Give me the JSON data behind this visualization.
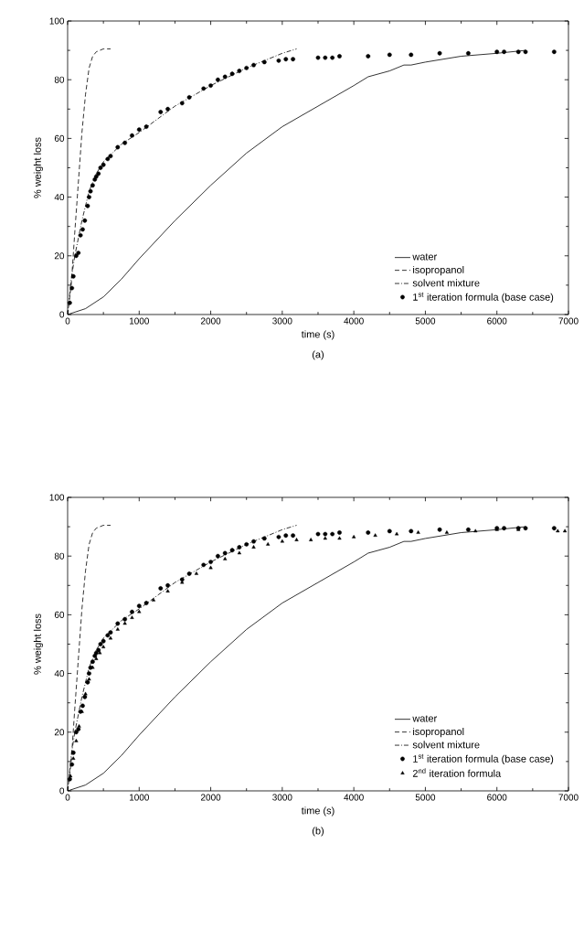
{
  "chart_data": [
    {
      "type": "line",
      "xlabel": "time (s)",
      "ylabel": "% weight loss",
      "annotations": [
        "(a)"
      ],
      "xlim": [
        0,
        7000
      ],
      "ylim": [
        0,
        100
      ],
      "xticks": [
        0,
        1000,
        2000,
        3000,
        4000,
        5000,
        6000,
        7000
      ],
      "yticks": [
        0,
        20,
        40,
        60,
        80,
        100
      ],
      "grid": false,
      "legend": "bottom right",
      "series": [
        {
          "name": "water",
          "line_style": "solid",
          "marker": "none",
          "color": "#000000",
          "x": [
            0,
            250,
            500,
            750,
            1000,
            1500,
            2000,
            2500,
            3000,
            3500,
            4000,
            4200,
            4500,
            4700,
            4800,
            5000,
            5500,
            6000,
            6400
          ],
          "values": [
            0,
            2,
            6,
            12,
            19,
            32,
            44,
            55,
            64,
            71,
            78,
            81,
            83,
            85,
            85,
            86,
            88,
            89,
            90
          ]
        },
        {
          "name": "isopropanol",
          "line_style": "dashed",
          "marker": "none",
          "color": "#000000",
          "x": [
            0,
            50,
            100,
            150,
            200,
            250,
            300,
            350,
            400,
            500,
            600
          ],
          "values": [
            0,
            10,
            28,
            45,
            62,
            75,
            84,
            88,
            89.5,
            90.5,
            90.5
          ]
        },
        {
          "name": "solvent mixture",
          "line_style": "dashdot",
          "marker": "none",
          "color": "#000000",
          "x": [
            0,
            50,
            100,
            200,
            300,
            400,
            500,
            750,
            1000,
            1500,
            2000,
            2500,
            2800,
            3000,
            3200
          ],
          "values": [
            0,
            12,
            20,
            32,
            42,
            48,
            52,
            58,
            62,
            71,
            78,
            84,
            87,
            89,
            90.5
          ]
        },
        {
          "name": "1$^{st}$ iteration formula (base case)",
          "type": "scatter",
          "marker": "circle",
          "color": "#000000",
          "x": [
            30,
            60,
            80,
            120,
            150,
            180,
            210,
            240,
            280,
            300,
            320,
            350,
            380,
            400,
            430,
            460,
            500,
            560,
            600,
            700,
            800,
            900,
            1000,
            1100,
            1300,
            1400,
            1600,
            1700,
            1900,
            2000,
            2100,
            2200,
            2300,
            2400,
            2500,
            2600,
            2750,
            2950,
            3050,
            3150,
            3500,
            3600,
            3700,
            3800,
            4200,
            4500,
            4800,
            5200,
            5600,
            6000,
            6100,
            6300,
            6400,
            6800
          ],
          "values": [
            4,
            9,
            13,
            20,
            21,
            27,
            29,
            32,
            37,
            40,
            42,
            44,
            46,
            47,
            48,
            50,
            51,
            53,
            54,
            57,
            58.5,
            61,
            63,
            64,
            69,
            70,
            72,
            74,
            77,
            78,
            80,
            81,
            82,
            83,
            84,
            85,
            86,
            86.5,
            87,
            87,
            87.5,
            87.5,
            87.5,
            88,
            88,
            88.5,
            88.5,
            89,
            89,
            89.5,
            89.5,
            89.5,
            89.5,
            89.5
          ]
        }
      ]
    },
    {
      "type": "line",
      "xlabel": "time (s)",
      "ylabel": "% weight loss",
      "annotations": [
        "(b)"
      ],
      "xlim": [
        0,
        7000
      ],
      "ylim": [
        0,
        100
      ],
      "xticks": [
        0,
        1000,
        2000,
        3000,
        4000,
        5000,
        6000,
        7000
      ],
      "yticks": [
        0,
        20,
        40,
        60,
        80,
        100
      ],
      "grid": false,
      "legend": "bottom right",
      "series": [
        {
          "name": "water",
          "line_style": "solid",
          "marker": "none",
          "color": "#000000",
          "x": [
            0,
            250,
            500,
            750,
            1000,
            1500,
            2000,
            2500,
            3000,
            3500,
            4000,
            4200,
            4500,
            4700,
            4800,
            5000,
            5500,
            6000,
            6400
          ],
          "values": [
            0,
            2,
            6,
            12,
            19,
            32,
            44,
            55,
            64,
            71,
            78,
            81,
            83,
            85,
            85,
            86,
            88,
            89,
            90
          ]
        },
        {
          "name": "isopropanol",
          "line_style": "dashed",
          "marker": "none",
          "color": "#000000",
          "x": [
            0,
            50,
            100,
            150,
            200,
            250,
            300,
            350,
            400,
            500,
            600
          ],
          "values": [
            0,
            10,
            28,
            45,
            62,
            75,
            84,
            88,
            89.5,
            90.5,
            90.5
          ]
        },
        {
          "name": "solvent mixture",
          "line_style": "dashdot",
          "marker": "none",
          "color": "#000000",
          "x": [
            0,
            50,
            100,
            200,
            300,
            400,
            500,
            750,
            1000,
            1500,
            2000,
            2500,
            2800,
            3000,
            3200
          ],
          "values": [
            0,
            12,
            20,
            32,
            42,
            48,
            52,
            58,
            62,
            71,
            78,
            84,
            87,
            89,
            90.5
          ]
        },
        {
          "name": "1$^{st}$ iteration formula (base case)",
          "type": "scatter",
          "marker": "circle",
          "color": "#000000",
          "x": [
            30,
            60,
            80,
            120,
            150,
            180,
            210,
            240,
            280,
            300,
            320,
            350,
            380,
            400,
            430,
            460,
            500,
            560,
            600,
            700,
            800,
            900,
            1000,
            1100,
            1300,
            1400,
            1600,
            1700,
            1900,
            2000,
            2100,
            2200,
            2300,
            2400,
            2500,
            2600,
            2750,
            2950,
            3050,
            3150,
            3500,
            3600,
            3700,
            3800,
            4200,
            4500,
            4800,
            5200,
            5600,
            6000,
            6100,
            6300,
            6400,
            6800
          ],
          "values": [
            4,
            9,
            13,
            20,
            21,
            27,
            29,
            32,
            37,
            40,
            42,
            44,
            46,
            47,
            48,
            50,
            51,
            53,
            54,
            57,
            58.5,
            61,
            63,
            64,
            69,
            70,
            72,
            74,
            77,
            78,
            80,
            81,
            82,
            83,
            84,
            85,
            86,
            86.5,
            87,
            87,
            87.5,
            87.5,
            87.5,
            88,
            88,
            88.5,
            88.5,
            89,
            89,
            89.5,
            89.5,
            89.5,
            89.5,
            89.5
          ]
        },
        {
          "name": "2$^{nd}$ iteration formula",
          "type": "scatter",
          "marker": "triangle",
          "color": "#000000",
          "x": [
            40,
            80,
            120,
            160,
            200,
            250,
            300,
            350,
            400,
            450,
            500,
            600,
            700,
            800,
            900,
            1000,
            1200,
            1400,
            1600,
            1800,
            2000,
            2200,
            2400,
            2600,
            2800,
            3000,
            3200,
            3400,
            3600,
            3800,
            4000,
            4300,
            4600,
            4900,
            5300,
            5700,
            6000,
            6300,
            6850,
            6950
          ],
          "values": [
            5,
            11,
            17,
            22,
            27,
            33,
            38,
            42,
            45,
            47,
            49,
            52,
            55,
            57,
            59,
            61,
            65,
            68,
            71,
            74,
            76,
            79,
            81,
            83,
            84,
            85,
            85.5,
            85.5,
            86,
            86,
            86.5,
            87,
            87.5,
            88,
            88,
            88.5,
            89,
            89,
            88.5,
            88.5
          ]
        }
      ]
    }
  ]
}
